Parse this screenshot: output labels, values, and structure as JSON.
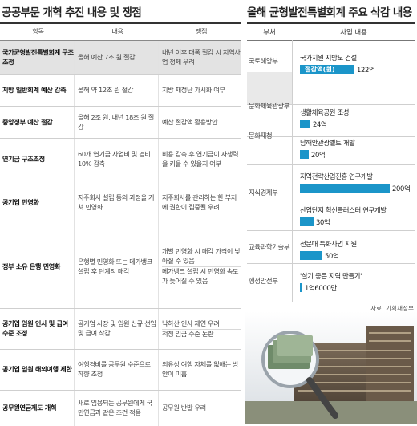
{
  "left": {
    "title": "공공부문 개혁 추진 내용 및 쟁점",
    "headers": [
      "항목",
      "내용",
      "쟁점"
    ],
    "rows": [
      {
        "item": "국가균형발전특별회계 구조조정",
        "content": "올해 예산 7조 원 절감",
        "issues": [
          "내년 이후 대폭 절감 시 지역사업 정체 우려"
        ]
      },
      {
        "item": "지방 일반회계 예산 감축",
        "content": "올해 약 12조 원 절감",
        "issues": [
          "지방 재정난 가시화 여부"
        ]
      },
      {
        "item": "중앙정부 예산 절감",
        "content": "올해 2조 원, 내년 18조 원 절감",
        "issues": [
          "예산 절감액 활용방안"
        ]
      },
      {
        "item": "연기금 구조조정",
        "content": "60개 연기금 사업비 및 경비 10% 감축",
        "issues": [
          "비용 감축 후 연기금이 자생력을 키울 수 있을지 여부"
        ]
      },
      {
        "item": "공기업 민영화",
        "content": "지주회사 설립 등의 과정을 거쳐 민영화",
        "issues": [
          "지주회사를 관리하는 한 부처에 권한이 집중될 우려"
        ]
      },
      {
        "item": "정부 소유 은행 민영화",
        "content": "은행별 민영화 또는 메가뱅크 설립 후 단계적 매각",
        "issues": [
          "개별 민영화 시 매각 가격이 낮아질 수 있음",
          "메가뱅크 설립 시 민영화 속도가 늦어질 수 있음"
        ]
      },
      {
        "item": "공기업 임원 인사 및 급여 수준 조정",
        "content": "공기업 사장 및 임원 신규 선임 및 급여 삭감",
        "issues": [
          "낙하산 인사 재연 우려",
          "적정 임금 수준 논란"
        ]
      },
      {
        "item": "공기업 임원 해외여행 제한",
        "content": "여행경비를 공무원 수준으로 하향 조정",
        "issues": [
          "외유성 여행 자체를 없애는 방안이 미흡"
        ]
      },
      {
        "item": "공무원연금제도 개혁",
        "content": "새로 임용되는 공무원에게 국민연금과 같은 조건 적용",
        "issues": [
          "공무원 반발 우려"
        ]
      }
    ]
  },
  "right": {
    "title": "올해 균형발전특별회계 주요 삭감 내용",
    "headers": [
      "부처",
      "사업 내용"
    ],
    "ministries": [
      "국토해양부",
      "문화체육관광부",
      "문화재청",
      "지식경제부",
      "교육과학기술부",
      "행정안전부"
    ],
    "items": [
      {
        "name": "국가지원 지방도 건설",
        "inbar": "절감액(원)",
        "amount": "122억",
        "value": 122
      },
      {
        "name": "생활체육공원 조성",
        "amount": "24억",
        "value": 24
      },
      {
        "name": "남해안관광벨트 개발",
        "amount": "20억",
        "value": 20
      },
      {
        "name": "지역전략산업진흥 연구개발",
        "amount": "200억",
        "value": 200
      },
      {
        "name": "산업단지 혁신클러스터 연구개발",
        "amount": "30억",
        "value": 30
      },
      {
        "name": "전문대 특화사업 지원",
        "amount": "50억",
        "value": 50
      },
      {
        "name": "'살기 좋은 지역 만들기'",
        "amount": "1억6000만",
        "value": 1.6
      }
    ],
    "source": "자료: 기획재정부"
  },
  "chart_data": {
    "type": "bar",
    "title": "올해 균형발전특별회계 주요 삭감 내용",
    "categories": [
      "국가지원 지방도 건설",
      "생활체육공원 조성",
      "남해안관광벨트 개발",
      "지역전략산업진흥 연구개발",
      "산업단지 혁신클러스터 연구개발",
      "전문대 특화사업 지원",
      "'살기 좋은 지역 만들기'"
    ],
    "series": [
      {
        "name": "절감액(원)",
        "values": [
          12200000000,
          2400000000,
          2000000000,
          20000000000,
          3000000000,
          5000000000,
          160000000
        ]
      }
    ],
    "color": "#1b95c9"
  }
}
